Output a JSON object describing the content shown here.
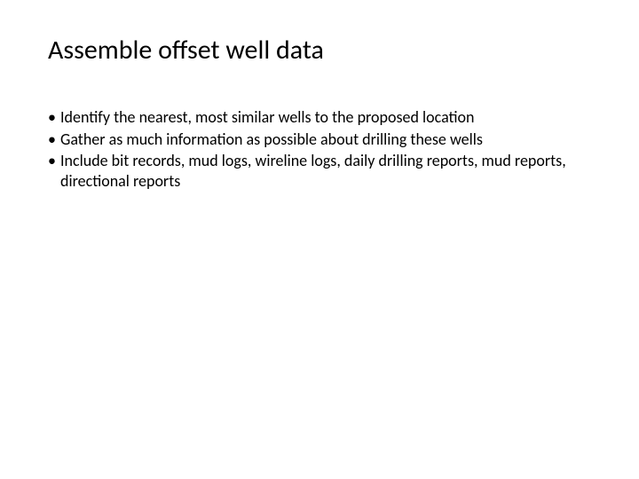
{
  "slide": {
    "title": "Assemble offset well data",
    "bullets": [
      "Identify the nearest, most similar wells to the proposed location",
      "Gather as much information as possible about drilling these wells",
      "Include bit records, mud logs, wireline logs, daily drilling reports, mud reports, directional reports"
    ],
    "title_fontsize": 30,
    "body_fontsize": 18,
    "text_color": "#000000",
    "background_color": "#ffffff"
  }
}
